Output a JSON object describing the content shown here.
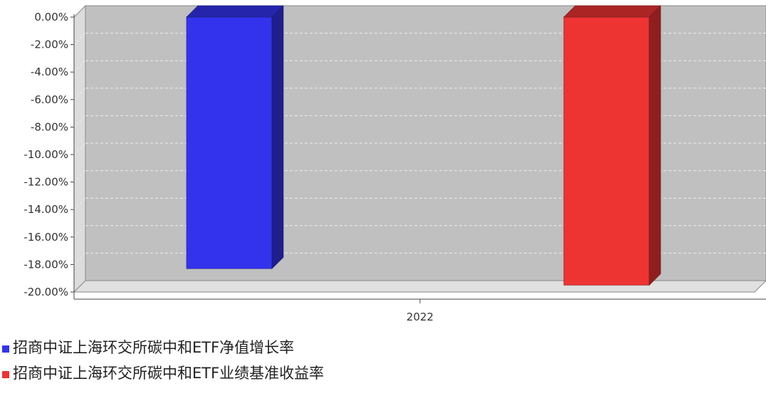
{
  "chart_data": {
    "type": "bar",
    "categories": [
      "2022"
    ],
    "series": [
      {
        "name": "招商中证上海环交所碳中和ETF净值增长率",
        "values": [
          -18.3
        ],
        "color": "#3333ee"
      },
      {
        "name": "招商中证上海环交所碳中和ETF业绩基准收益率",
        "values": [
          -19.5
        ],
        "color": "#ee3333"
      }
    ],
    "ylim": [
      -20,
      0
    ],
    "ytick_step": 2,
    "yticks": [
      "0.00%",
      "-2.00%",
      "-4.00%",
      "-6.00%",
      "-8.00%",
      "-10.00%",
      "-12.00%",
      "-14.00%",
      "-16.00%",
      "-18.00%",
      "-20.00%"
    ],
    "grid": true,
    "style": "3d",
    "legend_position": "bottom-left"
  }
}
